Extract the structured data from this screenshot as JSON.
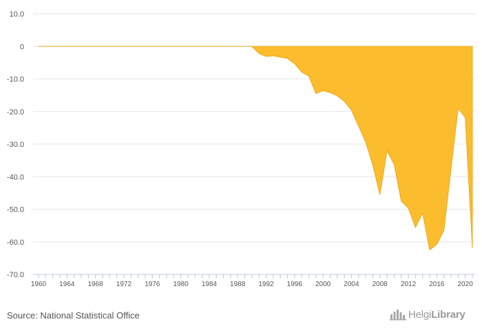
{
  "chart_data": {
    "type": "area",
    "title": "",
    "xlabel": "",
    "ylabel": "",
    "ylim": [
      -70,
      10
    ],
    "xlim": [
      1960,
      2021
    ],
    "yticks": [
      10,
      0,
      -10,
      -20,
      -30,
      -40,
      -50,
      -60,
      -70
    ],
    "ytick_labels": [
      "10.0",
      "0",
      "-10.0",
      "-20.0",
      "-30.0",
      "-40.0",
      "-50.0",
      "-60.0",
      "-70.0"
    ],
    "xticks": [
      1960,
      1964,
      1968,
      1972,
      1976,
      1980,
      1984,
      1988,
      1992,
      1996,
      2000,
      2004,
      2008,
      2012,
      2016,
      2020
    ],
    "grid": true,
    "fill_color": "#FBBC2E",
    "line_color": "#F0A81C",
    "series": [
      {
        "x": [
          1960,
          1961,
          1962,
          1963,
          1964,
          1965,
          1966,
          1967,
          1968,
          1969,
          1970,
          1971,
          1972,
          1973,
          1974,
          1975,
          1976,
          1977,
          1978,
          1979,
          1980,
          1981,
          1982,
          1983,
          1984,
          1985,
          1986,
          1987,
          1988,
          1989,
          1990,
          1991,
          1992,
          1993,
          1994,
          1995,
          1996,
          1997,
          1998,
          1999,
          2000,
          2001,
          2002,
          2003,
          2004,
          2005,
          2006,
          2007,
          2008,
          2009,
          2010,
          2011,
          2012,
          2013,
          2014,
          2015,
          2016,
          2017,
          2018,
          2019,
          2020,
          2021
        ],
        "values": [
          0,
          0,
          0,
          0,
          0,
          0,
          0,
          0,
          0,
          0,
          0,
          0,
          0,
          0,
          0,
          0,
          0,
          0,
          0,
          0,
          0,
          0,
          0,
          0,
          0,
          0,
          0,
          0,
          0,
          0,
          0,
          -2.2,
          -3.1,
          -2.9,
          -3.3,
          -3.7,
          -5.3,
          -7.9,
          -9.1,
          -14.5,
          -13.6,
          -14.2,
          -15.2,
          -16.9,
          -19.6,
          -24.5,
          -29.4,
          -36.5,
          -45.5,
          -32.1,
          -36.2,
          -47.5,
          -49.7,
          -55.6,
          -51.2,
          -62.5,
          -60.8,
          -56.5,
          -37.5,
          -19.0,
          -21.9,
          -61.8
        ]
      }
    ]
  },
  "footer": {
    "source": "Source: National Statistical Office",
    "brand_thin": "Helgi",
    "brand_bold": "Library",
    "brand_icon": "bar-chart-logo-icon"
  }
}
